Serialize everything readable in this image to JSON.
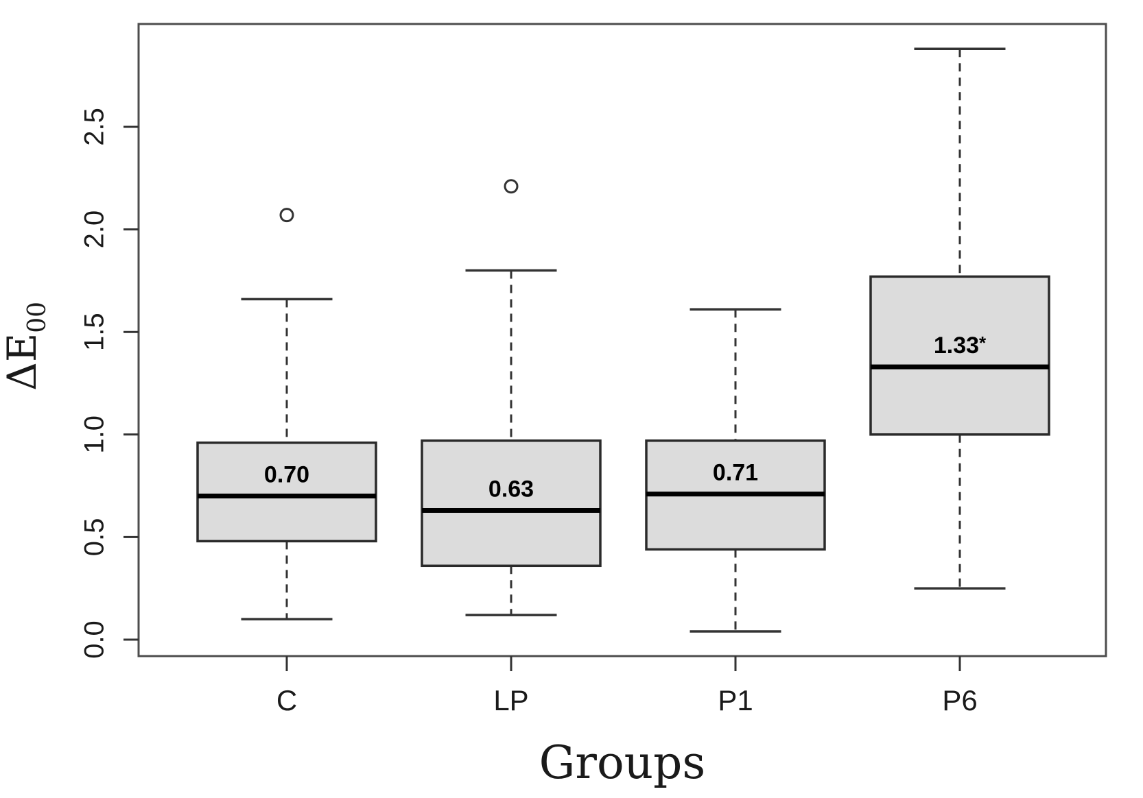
{
  "figure": {
    "background": "#ffffff",
    "box_fill": "#dcdcdc",
    "box_border_color": "#2a2a2a",
    "median_color": "#000000",
    "whisker_color": "#333333",
    "frame_color": "#4d4d4d",
    "tick_color": "#333333",
    "text_color": "#1a1a1a"
  },
  "chart_data": {
    "type": "boxplot",
    "title": "",
    "xlabel": "Groups",
    "ylabel_main": "ΔE",
    "ylabel_sub": "00",
    "categories": [
      "C",
      "LP",
      "P1",
      "P6"
    ],
    "ytick_labels": [
      "0.0",
      "0.5",
      "1.0",
      "1.5",
      "2.0",
      "2.5"
    ],
    "ylim": [
      -0.08,
      3.0
    ],
    "grid": false,
    "legend": "none",
    "series": [
      {
        "group": "C",
        "median": 0.7,
        "median_label": "0.70",
        "q1": 0.48,
        "q3": 0.96,
        "whisker_low": 0.1,
        "whisker_high": 1.66,
        "outliers": [
          2.07
        ]
      },
      {
        "group": "LP",
        "median": 0.63,
        "median_label": "0.63",
        "q1": 0.36,
        "q3": 0.97,
        "whisker_low": 0.12,
        "whisker_high": 1.8,
        "outliers": [
          2.21
        ]
      },
      {
        "group": "P1",
        "median": 0.71,
        "median_label": "0.71",
        "q1": 0.44,
        "q3": 0.97,
        "whisker_low": 0.04,
        "whisker_high": 1.61,
        "outliers": []
      },
      {
        "group": "P6",
        "median": 1.33,
        "median_label": "1.33*",
        "q1": 1.0,
        "q3": 1.77,
        "whisker_low": 0.25,
        "whisker_high": 2.88,
        "outliers": []
      }
    ]
  }
}
